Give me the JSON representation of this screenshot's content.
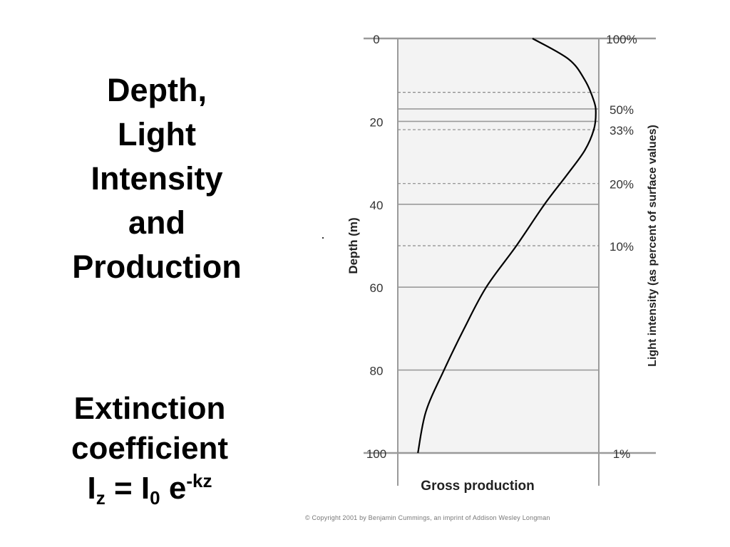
{
  "slide": {
    "title_lines": [
      "Depth,",
      "Light",
      "Intensity",
      "and",
      "Production"
    ],
    "equation": {
      "line1": "Extinction",
      "line2": "coefficient",
      "lhs_base": "I",
      "lhs_sub": "z",
      "equals": " = ",
      "rhs_base": "I",
      "rhs_sub": "0",
      "rhs_exp_base": " e",
      "rhs_exp": "-kz"
    },
    "copyright": "© Copyright 2001 by Benjamin Cummings, an imprint of Addison Wesley Longman"
  },
  "colors": {
    "plot_fill": "#f3f3f3",
    "solid_line": "#9a9a9a",
    "dashed_line": "#8a8a8a",
    "curve": "#000000",
    "tick_text": "#333333"
  },
  "chart_data": {
    "type": "line",
    "xlabel": "Gross production",
    "ylabel": "Depth (m)",
    "y2label": "Light intensity (as percent of surface values)",
    "ylim": [
      0,
      100
    ],
    "y_ticks": [
      0,
      20,
      40,
      60,
      80,
      100
    ],
    "y_tick_labels": [
      "0",
      "20",
      "40",
      "60",
      "80",
      "100"
    ],
    "light_levels": [
      {
        "label": "100%",
        "depth": 0,
        "style": "solid"
      },
      {
        "label": "50%",
        "depth": 17,
        "style": "dashed"
      },
      {
        "label": "33%",
        "depth": 22,
        "style": "dashed"
      },
      {
        "label": "20%",
        "depth": 35,
        "style": "dashed"
      },
      {
        "label": "10%",
        "depth": 50,
        "style": "dashed"
      },
      {
        "label": "1%",
        "depth": 100,
        "style": "solid"
      }
    ],
    "gridlines": [
      {
        "depth": 13,
        "style": "dashed"
      },
      {
        "depth": 17,
        "style": "solid"
      },
      {
        "depth": 20,
        "style": "solid"
      },
      {
        "depth": 22,
        "style": "dashed"
      },
      {
        "depth": 35,
        "style": "dashed"
      },
      {
        "depth": 40,
        "style": "solid"
      },
      {
        "depth": 50,
        "style": "dashed"
      },
      {
        "depth": 60,
        "style": "solid"
      },
      {
        "depth": 80,
        "style": "solid"
      }
    ],
    "series": [
      {
        "name": "",
        "points": [
          {
            "depth": 0,
            "production": 0.67
          },
          {
            "depth": 5,
            "production": 0.85
          },
          {
            "depth": 10,
            "production": 0.93
          },
          {
            "depth": 15,
            "production": 0.975
          },
          {
            "depth": 18,
            "production": 0.985
          },
          {
            "depth": 22,
            "production": 0.975
          },
          {
            "depth": 27,
            "production": 0.93
          },
          {
            "depth": 33,
            "production": 0.84
          },
          {
            "depth": 40,
            "production": 0.73
          },
          {
            "depth": 50,
            "production": 0.59
          },
          {
            "depth": 60,
            "production": 0.44
          },
          {
            "depth": 70,
            "production": 0.33
          },
          {
            "depth": 80,
            "production": 0.23
          },
          {
            "depth": 90,
            "production": 0.14
          },
          {
            "depth": 100,
            "production": 0.1
          }
        ]
      }
    ]
  }
}
